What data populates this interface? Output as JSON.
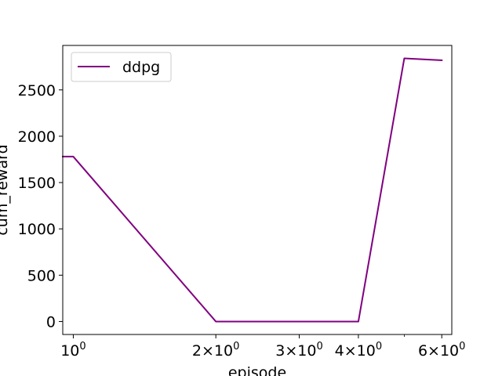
{
  "chart_data": {
    "type": "line",
    "xlabel": "episode",
    "ylabel": "cum_reward",
    "xscale": "log",
    "xlim": [
      0.95,
      6.3
    ],
    "ylim": [
      -140,
      2980
    ],
    "x_major_ticks": [
      1,
      2,
      3,
      4,
      6
    ],
    "x_minor_ticks": [
      5
    ],
    "x_tick_labels": [
      {
        "base": "10",
        "exp": "0",
        "coef": ""
      },
      {
        "base": "10",
        "exp": "0",
        "coef": "2×"
      },
      {
        "base": "10",
        "exp": "0",
        "coef": "3×"
      },
      {
        "base": "10",
        "exp": "0",
        "coef": "4×"
      },
      {
        "base": "10",
        "exp": "0",
        "coef": "6×"
      }
    ],
    "y_ticks": [
      0,
      500,
      1000,
      1500,
      2000,
      2500
    ],
    "y_tick_labels": [
      "0",
      "500",
      "1000",
      "1500",
      "2000",
      "2500"
    ],
    "grid": false,
    "legend_position": "upper-left",
    "series": [
      {
        "name": "ddpg",
        "color": "#800080",
        "x": [
          0.95,
          1,
          2,
          3,
          4,
          5,
          6
        ],
        "y": [
          1780,
          1780,
          0,
          0,
          0,
          2840,
          2820
        ]
      }
    ]
  }
}
